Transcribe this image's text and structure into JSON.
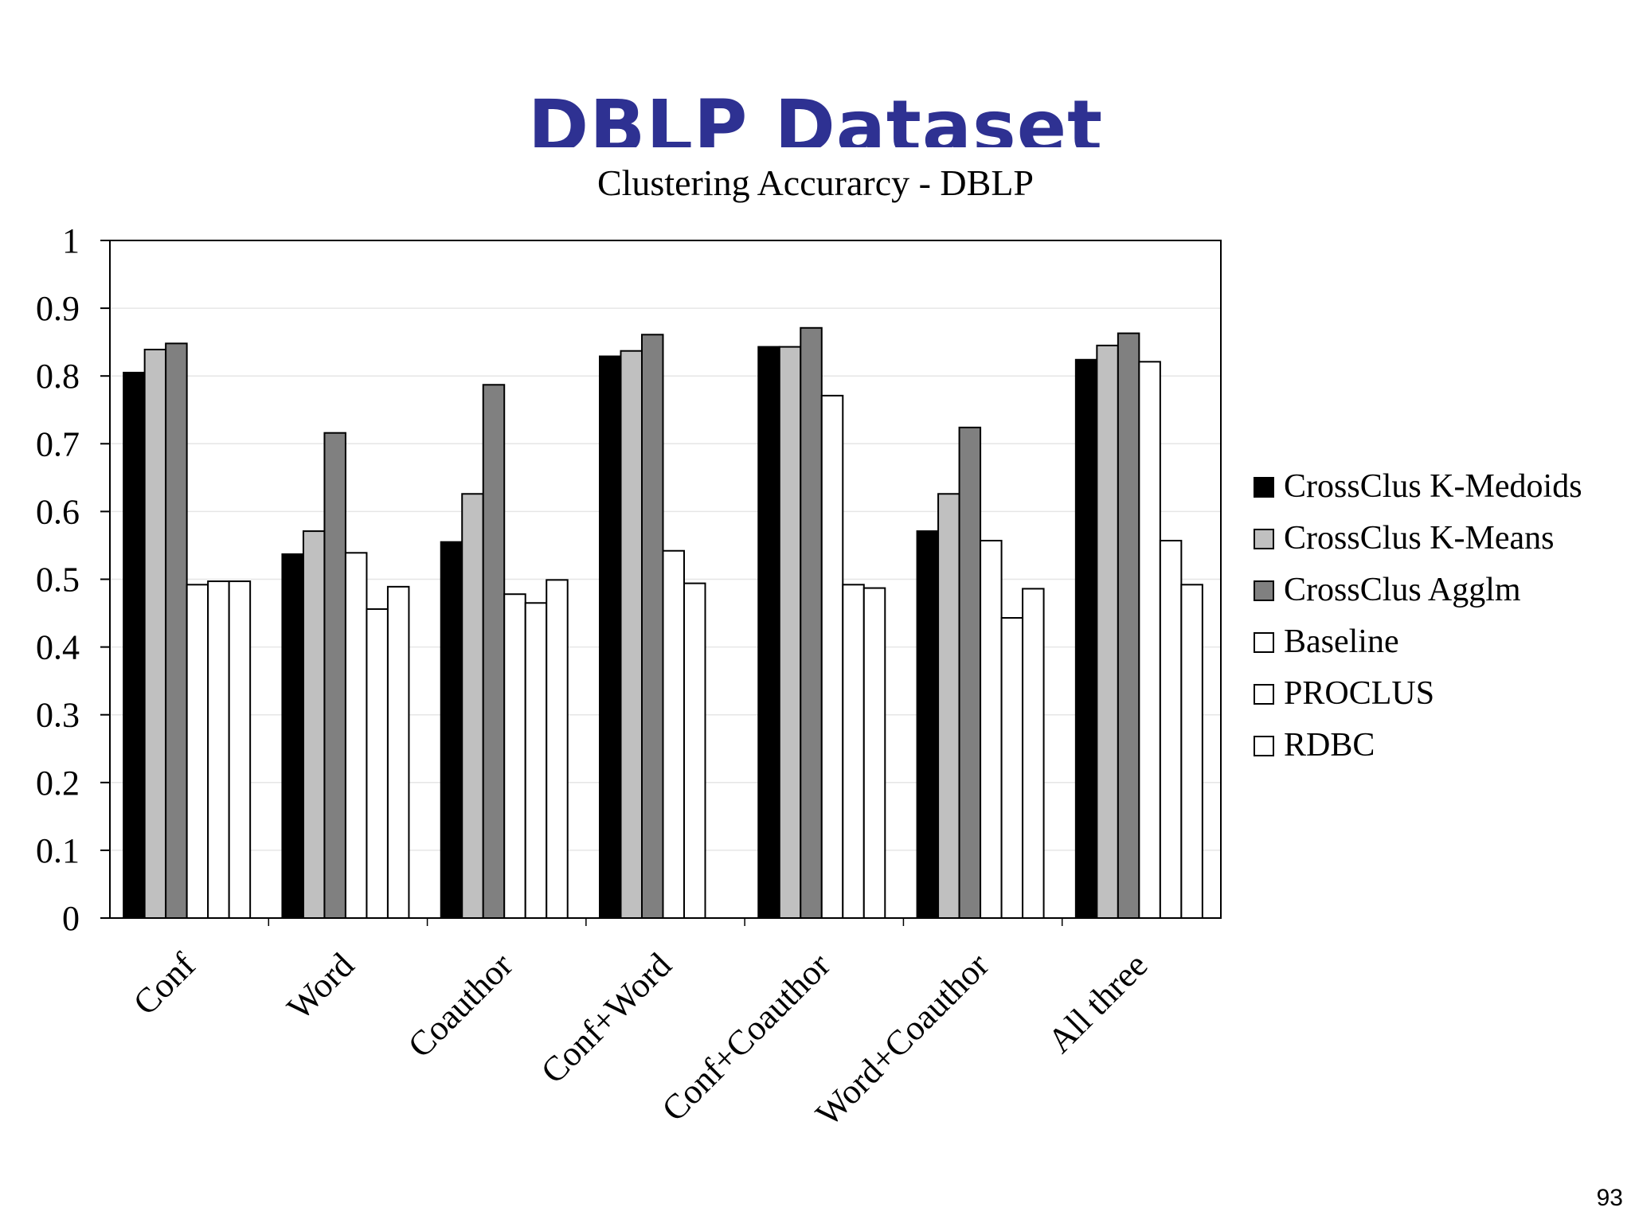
{
  "slide": {
    "title": "DBLP Dataset",
    "page_number": "93"
  },
  "chart_data": {
    "type": "bar",
    "title": "Clustering Accurarcy - DBLP",
    "xlabel": "",
    "ylabel": "",
    "ylim": [
      0,
      1
    ],
    "yticks": [
      "0",
      "0.1",
      "0.2",
      "0.3",
      "0.4",
      "0.5",
      "0.6",
      "0.7",
      "0.8",
      "0.9",
      "1"
    ],
    "categories": [
      "Conf",
      "Word",
      "Coauthor",
      "Conf+Word",
      "Conf+Coauthor",
      "Word+Coauthor",
      "All three"
    ],
    "grid": true,
    "legend_position": "right",
    "series": [
      {
        "name": "CrossClus K-Medoids",
        "color": "#000000",
        "values": [
          0.805,
          0.537,
          0.555,
          0.829,
          0.843,
          0.571,
          0.824
        ]
      },
      {
        "name": "CrossClus K-Means",
        "color": "#c0c0c0",
        "values": [
          0.839,
          0.571,
          0.626,
          0.837,
          0.843,
          0.626,
          0.845
        ]
      },
      {
        "name": "CrossClus Agglm",
        "color": "#808080",
        "values": [
          0.848,
          0.716,
          0.787,
          0.861,
          0.871,
          0.724,
          0.863
        ]
      },
      {
        "name": "Baseline",
        "color": "#ffffff",
        "values": [
          0.492,
          0.539,
          0.478,
          0.542,
          0.771,
          0.557,
          0.821
        ]
      },
      {
        "name": "PROCLUS",
        "color": "#ffffff",
        "values": [
          0.497,
          0.456,
          0.465,
          0.494,
          0.492,
          0.443,
          0.557
        ]
      },
      {
        "name": "RDBC",
        "color": "#ffffff",
        "values": [
          0.497,
          0.489,
          0.499,
          null,
          0.487,
          0.486,
          0.492
        ]
      }
    ]
  }
}
